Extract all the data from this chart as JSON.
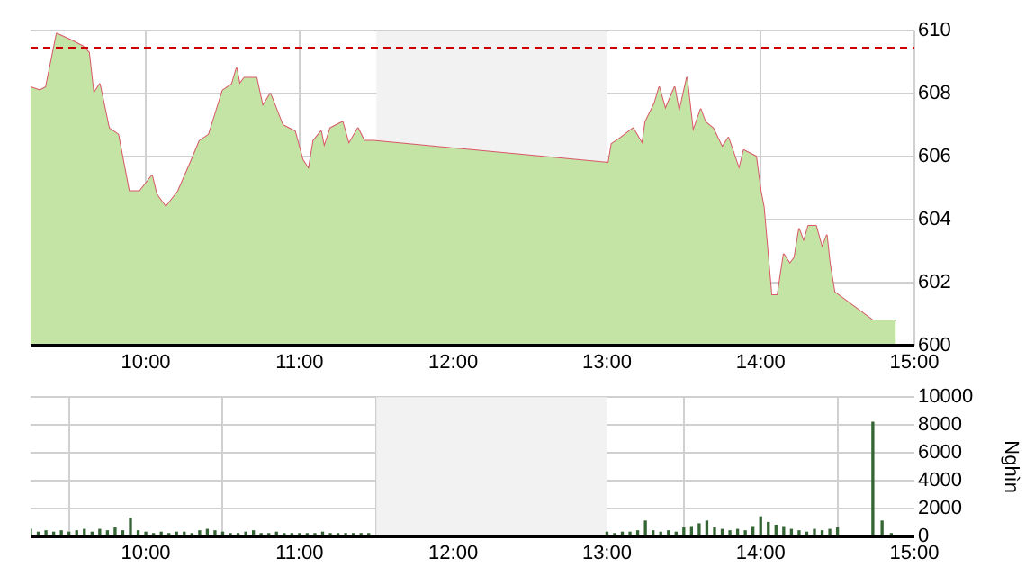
{
  "chart_data": [
    {
      "type": "area",
      "xlim": [
        9.25,
        15
      ],
      "xticks": [
        {
          "value": 10,
          "label": "10:00"
        },
        {
          "value": 11,
          "label": "11:00"
        },
        {
          "value": 12,
          "label": "12:00"
        },
        {
          "value": 13,
          "label": "13:00"
        },
        {
          "value": 14,
          "label": "14:00"
        },
        {
          "value": 15,
          "label": "15:00"
        }
      ],
      "ylim": [
        600,
        610
      ],
      "yticks": [
        600,
        602,
        604,
        606,
        608,
        610
      ],
      "grid": true,
      "x": [
        9.25,
        9.31,
        9.35,
        9.42,
        9.51,
        9.59,
        9.63,
        9.66,
        9.7,
        9.76,
        9.82,
        9.89,
        9.96,
        10.04,
        10.07,
        10.13,
        10.21,
        10.29,
        10.35,
        10.41,
        10.5,
        10.56,
        10.59,
        10.61,
        10.64,
        10.72,
        10.76,
        10.81,
        10.89,
        10.97,
        11.02,
        11.06,
        11.09,
        11.14,
        11.16,
        11.2,
        11.28,
        11.32,
        11.38,
        11.42,
        11.48,
        13.01,
        13.03,
        13.09,
        13.17,
        13.23,
        13.25,
        13.31,
        13.34,
        13.38,
        13.44,
        13.47,
        13.52,
        13.56,
        13.61,
        13.64,
        13.69,
        13.75,
        13.79,
        13.86,
        13.89,
        13.97,
        14.0,
        14.02,
        14.07,
        14.11,
        14.15,
        14.19,
        14.22,
        14.25,
        14.28,
        14.31,
        14.36,
        14.4,
        14.43,
        14.45,
        14.48,
        14.73,
        14.88
      ],
      "series": [
        {
          "color": "#c3e4a4",
          "values": [
            608.2,
            608.1,
            608.2,
            609.9,
            609.7,
            609.5,
            609.3,
            608.0,
            608.3,
            606.9,
            606.7,
            604.9,
            604.9,
            605.4,
            604.8,
            604.4,
            604.9,
            605.8,
            606.5,
            606.7,
            608.1,
            608.3,
            608.8,
            608.3,
            608.5,
            608.5,
            607.6,
            608.0,
            607.0,
            606.8,
            605.9,
            605.6,
            606.5,
            606.8,
            606.3,
            606.9,
            607.1,
            606.4,
            606.9,
            606.5,
            606.5,
            605.8,
            606.4,
            606.6,
            606.9,
            606.4,
            607.1,
            607.7,
            608.2,
            607.5,
            608.2,
            607.4,
            608.5,
            606.8,
            607.5,
            607.1,
            606.9,
            606.3,
            606.6,
            605.6,
            606.2,
            606.0,
            604.9,
            604.4,
            601.6,
            601.6,
            602.9,
            602.6,
            602.8,
            603.7,
            603.3,
            603.8,
            603.8,
            603.1,
            603.5,
            602.6,
            601.7,
            600.8,
            600.8
          ]
        },
        {
          "type": "line",
          "color": "#d85868",
          "values": [
            608.2,
            608.1,
            608.2,
            609.9,
            609.7,
            609.5,
            609.3,
            608.0,
            608.3,
            606.9,
            606.7,
            604.9,
            604.9,
            605.4,
            604.8,
            604.4,
            604.9,
            605.8,
            606.5,
            606.7,
            608.1,
            608.3,
            608.8,
            608.3,
            608.5,
            608.5,
            607.6,
            608.0,
            607.0,
            606.8,
            605.9,
            605.6,
            606.5,
            606.8,
            606.3,
            606.9,
            607.1,
            606.4,
            606.9,
            606.5,
            606.5,
            605.8,
            606.4,
            606.6,
            606.9,
            606.4,
            607.1,
            607.7,
            608.2,
            607.5,
            608.2,
            607.4,
            608.5,
            606.8,
            607.5,
            607.1,
            606.9,
            606.3,
            606.6,
            605.6,
            606.2,
            606.0,
            604.9,
            604.4,
            601.6,
            601.6,
            602.9,
            602.6,
            602.8,
            603.7,
            603.3,
            603.8,
            603.8,
            603.1,
            603.5,
            602.6,
            601.7,
            600.8,
            600.8
          ]
        }
      ],
      "ref_lines": [
        {
          "axis": "y",
          "value": 609.5,
          "color": "#cc0000",
          "line_style": "dashed"
        }
      ],
      "bands": [
        {
          "axis": "x",
          "from": 11.5,
          "to": 13,
          "color": "#f2f2f2"
        }
      ]
    },
    {
      "type": "bar",
      "ylabel": "Nghìn",
      "xlim": [
        9.25,
        15
      ],
      "xticks": [
        {
          "value": 10,
          "label": "10:00"
        },
        {
          "value": 11,
          "label": "11:00"
        },
        {
          "value": 12,
          "label": "12:00"
        },
        {
          "value": 13,
          "label": "13:00"
        },
        {
          "value": 14,
          "label": "14:00"
        },
        {
          "value": 15,
          "label": "15:00"
        }
      ],
      "ylim": [
        0,
        10000
      ],
      "yticks": [
        0,
        2000,
        4000,
        6000,
        8000,
        10000
      ],
      "grid": true,
      "x": [
        9.25,
        9.3,
        9.35,
        9.4,
        9.45,
        9.5,
        9.55,
        9.6,
        9.65,
        9.7,
        9.75,
        9.8,
        9.85,
        9.9,
        9.95,
        10.0,
        10.05,
        10.1,
        10.15,
        10.2,
        10.25,
        10.3,
        10.35,
        10.4,
        10.45,
        10.5,
        10.55,
        10.6,
        10.65,
        10.7,
        10.75,
        10.8,
        10.85,
        10.9,
        10.95,
        11.0,
        11.05,
        11.1,
        11.15,
        11.2,
        11.25,
        11.3,
        11.35,
        11.4,
        11.45,
        13.0,
        13.05,
        13.1,
        13.15,
        13.2,
        13.25,
        13.3,
        13.35,
        13.4,
        13.45,
        13.5,
        13.55,
        13.6,
        13.65,
        13.7,
        13.75,
        13.8,
        13.85,
        13.9,
        13.95,
        14.0,
        14.05,
        14.1,
        14.15,
        14.2,
        14.25,
        14.3,
        14.35,
        14.4,
        14.45,
        14.5,
        14.73,
        14.79,
        14.85
      ],
      "series": [
        {
          "color": "#336633",
          "values": [
            500,
            300,
            400,
            300,
            400,
            300,
            400,
            500,
            300,
            500,
            400,
            600,
            400,
            1300,
            400,
            300,
            200,
            300,
            200,
            300,
            300,
            200,
            400,
            500,
            400,
            300,
            200,
            200,
            300,
            400,
            200,
            200,
            300,
            200,
            200,
            200,
            200,
            200,
            300,
            200,
            200,
            200,
            200,
            200,
            200,
            300,
            200,
            300,
            300,
            400,
            1100,
            400,
            300,
            400,
            300,
            600,
            700,
            900,
            1100,
            600,
            500,
            400,
            500,
            400,
            700,
            1400,
            1000,
            800,
            700,
            500,
            400,
            300,
            500,
            400,
            500,
            600,
            8200,
            1100,
            200
          ]
        }
      ],
      "bands": [
        {
          "axis": "x",
          "from": 11.5,
          "to": 13,
          "color": "#f2f2f2"
        }
      ]
    }
  ]
}
